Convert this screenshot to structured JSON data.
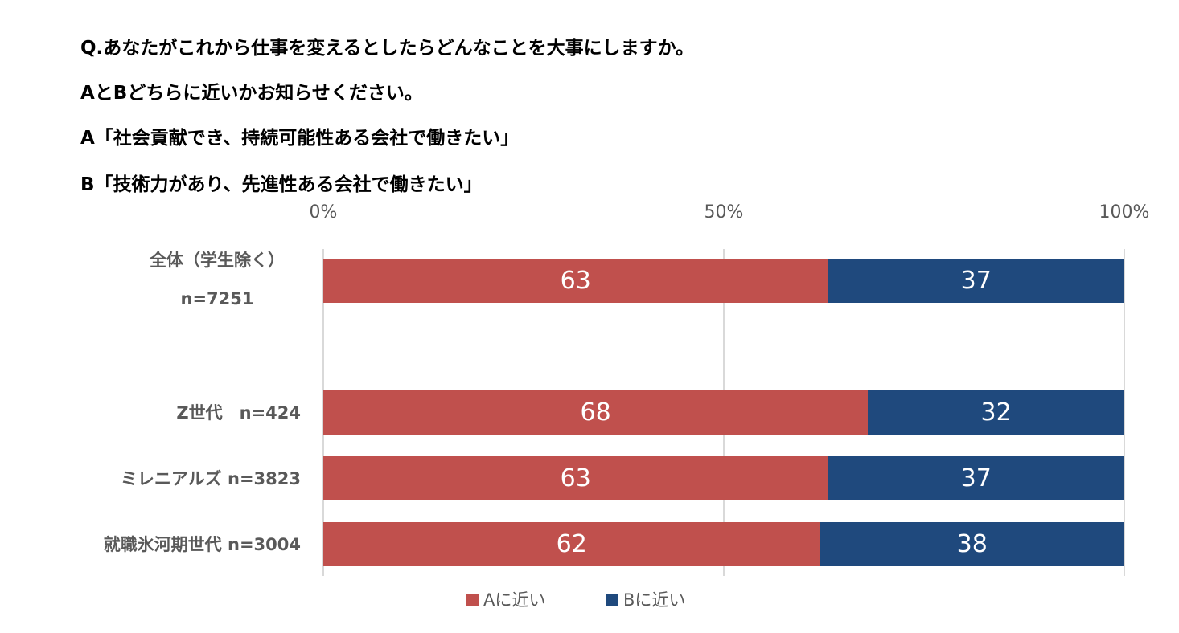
{
  "chart_data": {
    "type": "bar",
    "orientation": "horizontal",
    "stacked": true,
    "title_lines": [
      "Q.あなたがこれから仕事を変えるとしたらどんなことを大事にしますか。",
      "AとBどちらに近いかお知らせください。",
      "A「社会貢献でき、持続可能性ある会社で働きたい」",
      "B「技術力があり、先進性ある会社で働きたい」"
    ],
    "x_ticks": [
      "0%",
      "50%",
      "100%"
    ],
    "xlim": [
      0,
      100
    ],
    "categories": [
      {
        "line1": "全体（学生除く）",
        "line2": "n=7251"
      },
      {
        "line1": "Z世代　n=424"
      },
      {
        "line1": "ミレニアルズ n=3823"
      },
      {
        "line1": "就職氷河期世代 n=3004"
      }
    ],
    "series": [
      {
        "name": "Aに近い",
        "color": "#C0504D",
        "values": [
          63,
          68,
          63,
          62
        ]
      },
      {
        "name": "Bに近い",
        "color": "#1F497D",
        "values": [
          37,
          32,
          37,
          38
        ]
      }
    ],
    "legend_position": "bottom",
    "grid": true
  }
}
